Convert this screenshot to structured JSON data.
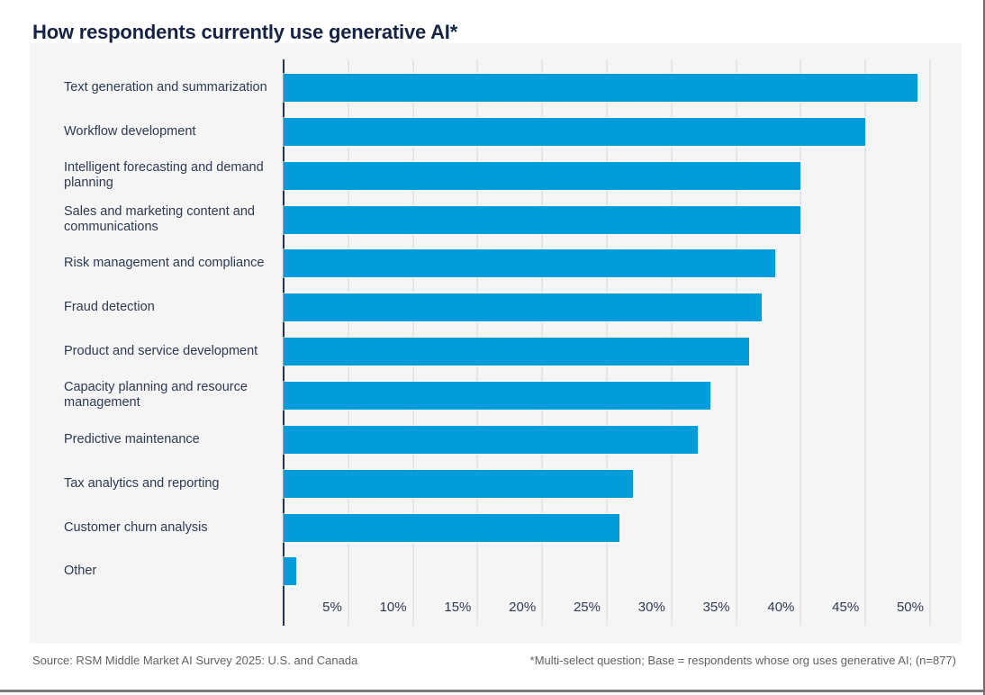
{
  "title": "How respondents currently use generative AI*",
  "footer": {
    "source": "Source: RSM Middle Market AI Survey 2025: U.S. and Canada",
    "note": "*Multi-select question; Base = respondents whose org uses generative AI; (n=877)"
  },
  "chart_data": {
    "type": "bar",
    "orientation": "horizontal",
    "title": "How respondents currently use generative AI*",
    "categories": [
      "Text generation and summarization",
      "Workflow development",
      "Intelligent forecasting and demand planning",
      "Sales and marketing content and communications",
      "Risk management and compliance",
      "Fraud detection",
      "Product and service development",
      "Capacity planning and resource management",
      "Predictive maintenance",
      "Tax analytics and reporting",
      "Customer churn analysis",
      "Other"
    ],
    "values": [
      49,
      45,
      40,
      40,
      38,
      37,
      36,
      33,
      32,
      27,
      26,
      1
    ],
    "unit": "%",
    "xlabel": "",
    "ylabel": "",
    "xticks": [
      "5%",
      "10%",
      "15%",
      "20%",
      "25%",
      "30%",
      "35%",
      "40%",
      "45%",
      "50%"
    ],
    "xtick_step_pct": 5,
    "xlim": [
      0,
      52.5
    ],
    "grid": true,
    "legend": null,
    "bar_color": "#009CDB",
    "plot_bg": "#f5f5f5"
  },
  "colors": {
    "bar": "#009CDB",
    "title_text": "#152444",
    "label_text": "#2d3a52",
    "plot_bg": "#f5f5f5",
    "gridline": "#e6e6e6",
    "axis_line": "#24344f",
    "footer_text": "#5f6265"
  }
}
